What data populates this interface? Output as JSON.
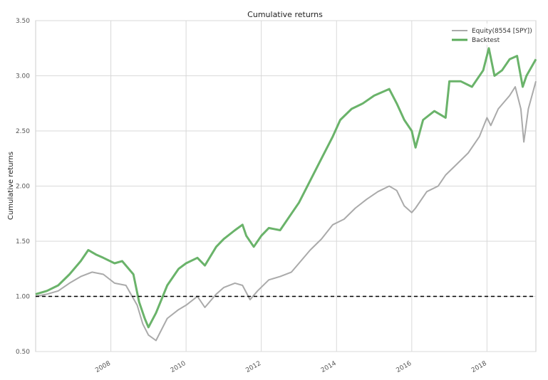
{
  "chart_data": {
    "type": "line",
    "title": "Cumulative returns",
    "xlabel": "",
    "ylabel": "Cumulative returns",
    "xlim": [
      2006.0,
      2019.3
    ],
    "ylim": [
      0.5,
      3.5
    ],
    "grid": true,
    "legend_position": "top-right",
    "y_ticks": [
      "0.50",
      "1.00",
      "1.50",
      "2.00",
      "2.50",
      "3.00",
      "3.50"
    ],
    "x_ticks": [
      "2008",
      "2010",
      "2012",
      "2014",
      "2016",
      "2018"
    ],
    "reference_line": {
      "y": 1.0,
      "style": "dashed",
      "color": "#000000"
    },
    "series": [
      {
        "name": "Equity(8554 [SPY])",
        "color": "#aaaaaa",
        "x": [
          2006.0,
          2006.3,
          2006.6,
          2006.9,
          2007.2,
          2007.5,
          2007.8,
          2008.1,
          2008.4,
          2008.7,
          2008.85,
          2009.0,
          2009.2,
          2009.5,
          2009.8,
          2010.0,
          2010.3,
          2010.5,
          2010.8,
          2011.0,
          2011.3,
          2011.5,
          2011.7,
          2011.9,
          2012.2,
          2012.5,
          2012.8,
          2013.0,
          2013.3,
          2013.6,
          2013.9,
          2014.2,
          2014.5,
          2014.8,
          2015.1,
          2015.4,
          2015.6,
          2015.8,
          2016.0,
          2016.1,
          2016.4,
          2016.7,
          2016.9,
          2017.2,
          2017.5,
          2017.8,
          2018.0,
          2018.1,
          2018.3,
          2018.6,
          2018.75,
          2018.9,
          2018.98,
          2019.1,
          2019.3
        ],
        "y": [
          1.0,
          1.02,
          1.05,
          1.12,
          1.18,
          1.22,
          1.2,
          1.12,
          1.1,
          0.92,
          0.75,
          0.65,
          0.6,
          0.8,
          0.88,
          0.92,
          1.0,
          0.9,
          1.02,
          1.08,
          1.12,
          1.1,
          0.97,
          1.05,
          1.15,
          1.18,
          1.22,
          1.3,
          1.42,
          1.52,
          1.65,
          1.7,
          1.8,
          1.88,
          1.95,
          2.0,
          1.96,
          1.82,
          1.76,
          1.8,
          1.95,
          2.0,
          2.1,
          2.2,
          2.3,
          2.45,
          2.62,
          2.55,
          2.7,
          2.82,
          2.9,
          2.7,
          2.4,
          2.7,
          2.95
        ]
      },
      {
        "name": "Backtest",
        "color": "#5aab5a",
        "x": [
          2006.0,
          2006.3,
          2006.6,
          2006.9,
          2007.2,
          2007.4,
          2007.6,
          2007.8,
          2008.1,
          2008.3,
          2008.6,
          2008.75,
          2008.9,
          2009.0,
          2009.2,
          2009.5,
          2009.8,
          2010.0,
          2010.3,
          2010.5,
          2010.8,
          2011.0,
          2011.3,
          2011.5,
          2011.6,
          2011.8,
          2012.0,
          2012.2,
          2012.5,
          2012.8,
          2013.0,
          2013.3,
          2013.6,
          2013.9,
          2014.1,
          2014.4,
          2014.7,
          2015.0,
          2015.2,
          2015.4,
          2015.6,
          2015.8,
          2016.0,
          2016.1,
          2016.3,
          2016.6,
          2016.9,
          2017.0,
          2017.3,
          2017.6,
          2017.9,
          2018.05,
          2018.2,
          2018.4,
          2018.6,
          2018.8,
          2018.95,
          2019.05,
          2019.3
        ],
        "y": [
          1.02,
          1.05,
          1.1,
          1.2,
          1.32,
          1.42,
          1.38,
          1.35,
          1.3,
          1.32,
          1.2,
          0.95,
          0.8,
          0.72,
          0.85,
          1.1,
          1.25,
          1.3,
          1.35,
          1.28,
          1.45,
          1.52,
          1.6,
          1.65,
          1.55,
          1.45,
          1.55,
          1.62,
          1.6,
          1.75,
          1.85,
          2.05,
          2.25,
          2.45,
          2.6,
          2.7,
          2.75,
          2.82,
          2.85,
          2.88,
          2.75,
          2.6,
          2.5,
          2.35,
          2.6,
          2.68,
          2.62,
          2.95,
          2.95,
          2.9,
          3.05,
          3.25,
          3.0,
          3.05,
          3.15,
          3.18,
          2.9,
          3.0,
          3.15
        ]
      }
    ]
  }
}
